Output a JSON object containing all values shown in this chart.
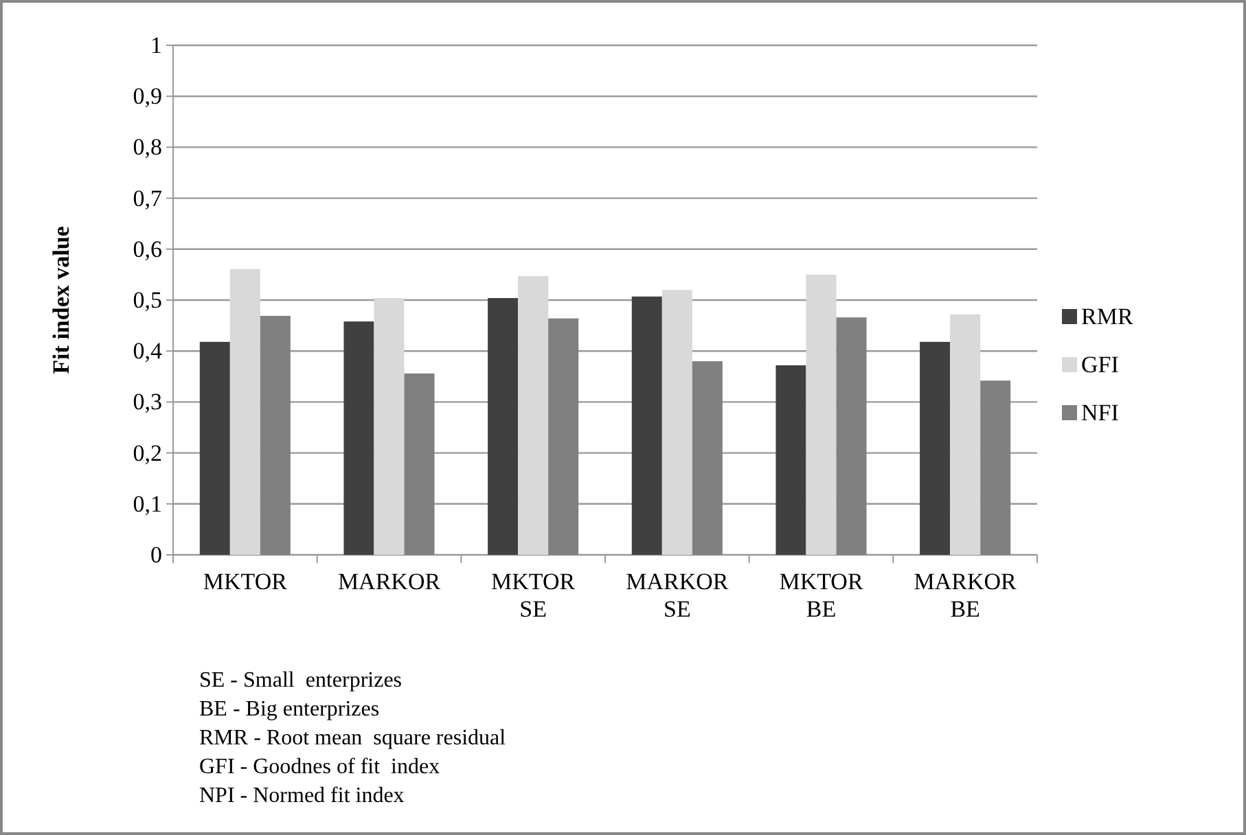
{
  "chart_data": {
    "type": "bar",
    "ylabel": "Fit index value",
    "categories": [
      "MKTOR",
      "MARKOR",
      "MKTOR SE",
      "MARKOR SE",
      "MKTOR BE",
      "MARKOR BE"
    ],
    "series": [
      {
        "name": "RMR",
        "color": "#404040",
        "values": [
          0.418,
          0.458,
          0.504,
          0.507,
          0.372,
          0.418
        ]
      },
      {
        "name": "GFI",
        "color": "#d9d9d9",
        "values": [
          0.561,
          0.504,
          0.547,
          0.52,
          0.55,
          0.472
        ]
      },
      {
        "name": "NFI",
        "color": "#808080",
        "values": [
          0.469,
          0.356,
          0.464,
          0.38,
          0.466,
          0.342
        ]
      }
    ],
    "ylim": [
      0,
      1
    ],
    "yticks": [
      0,
      {
        "value": 0.1,
        "label": "0,1"
      },
      {
        "value": 0.2,
        "label": "0,2"
      },
      {
        "value": 0.3,
        "label": "0,3"
      },
      {
        "value": 0.4,
        "label": "0,4"
      },
      {
        "value": 0.5,
        "label": "0,5"
      },
      {
        "value": 0.6,
        "label": "0,6"
      },
      {
        "value": 0.7,
        "label": "0,7"
      },
      {
        "value": 0.8,
        "label": "0,8"
      },
      {
        "value": 0.9,
        "label": "0,9"
      },
      1
    ],
    "grid": "y",
    "legend": "right",
    "annotations": [
      "SE - Small  enterprizes",
      "BE - Big enterprizes",
      "RMR - Root mean  square residual",
      "GFI - Goodnes of fit  index",
      "NPI - Normed fit index"
    ]
  }
}
